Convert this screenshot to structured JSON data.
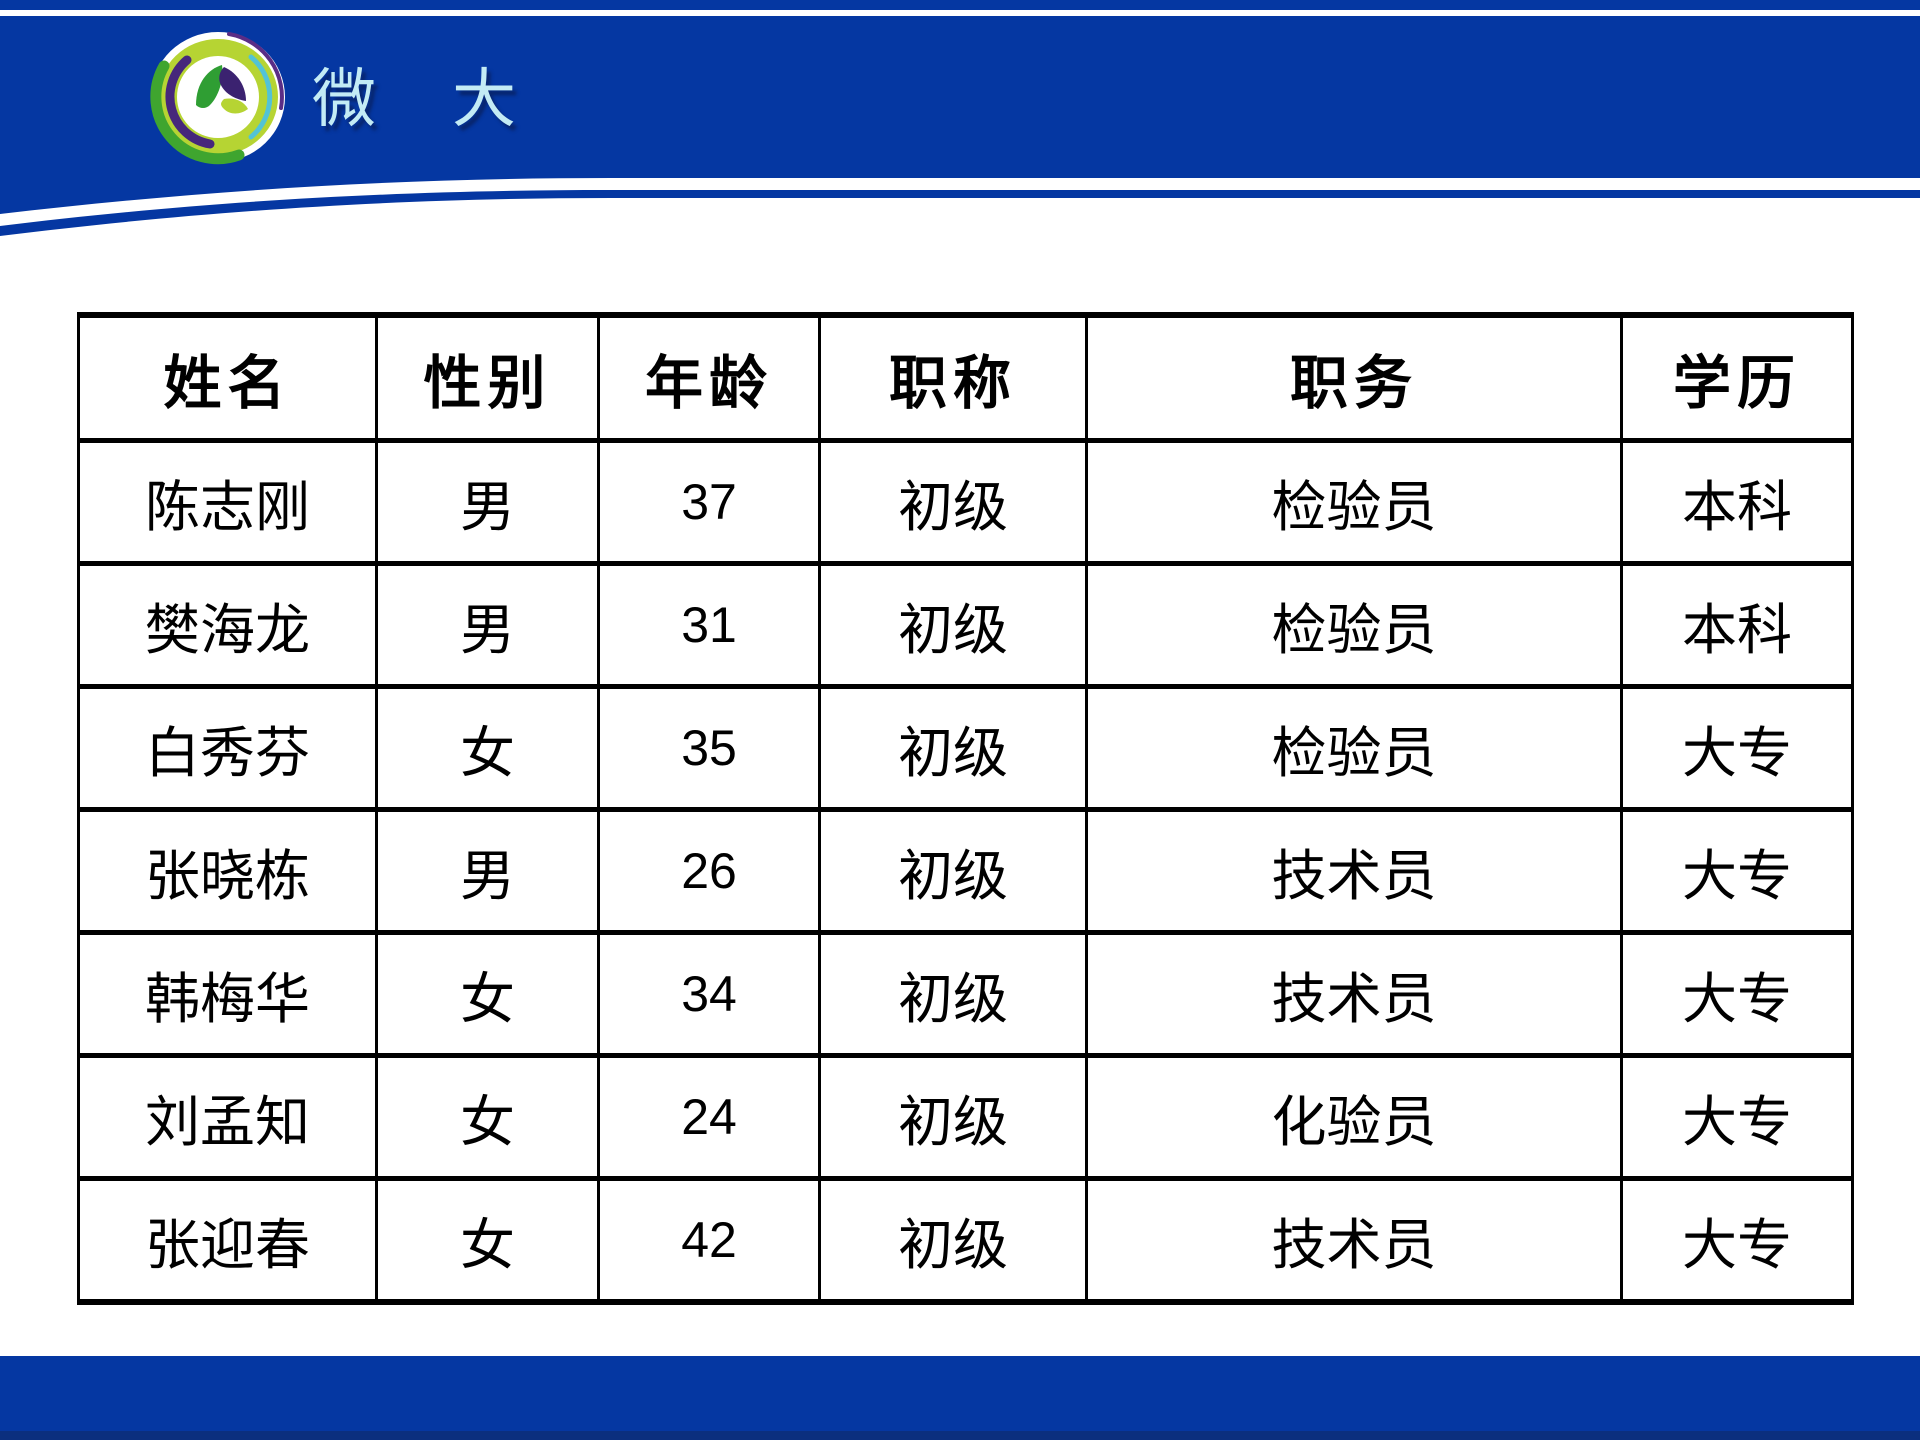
{
  "slide": {
    "background": "#ffffff",
    "brand": {
      "text": "微 大",
      "text_color": "#c3ebf5",
      "band_color": "#0537a2",
      "footer_edge_color": "#0b2f7e",
      "logo": {
        "ring_outer": "#ffffff",
        "ring_chartreuse": "#b6d433",
        "core": "#ffffff",
        "arc_green": "#3fa52f",
        "arc_purple": "#46277b",
        "arc_purple_thin": "#5a2d86",
        "arc_teal": "#52c3d6",
        "leaf_green": "#2f9e33",
        "leaf_purple": "#3b2270",
        "leaf_chartreuse": "#b6d433"
      }
    },
    "table": {
      "columns": [
        "姓名",
        "性别",
        "年龄",
        "职称",
        "职务",
        "学历"
      ],
      "rows": [
        [
          "陈志刚",
          "男",
          "37",
          "初级",
          "检验员",
          "本科"
        ],
        [
          "樊海龙",
          "男",
          "31",
          "初级",
          "检验员",
          "本科"
        ],
        [
          "白秀芬",
          "女",
          "35",
          "初级",
          "检验员",
          "大专"
        ],
        [
          "张晓栋",
          "男",
          "26",
          "初级",
          "技术员",
          "大专"
        ],
        [
          "韩梅华",
          "女",
          "34",
          "初级",
          "技术员",
          "大专"
        ],
        [
          "刘孟知",
          "女",
          "24",
          "初级",
          "化验员",
          "大专"
        ],
        [
          "张迎春",
          "女",
          "42",
          "初级",
          "技术员",
          "大专"
        ]
      ]
    }
  }
}
